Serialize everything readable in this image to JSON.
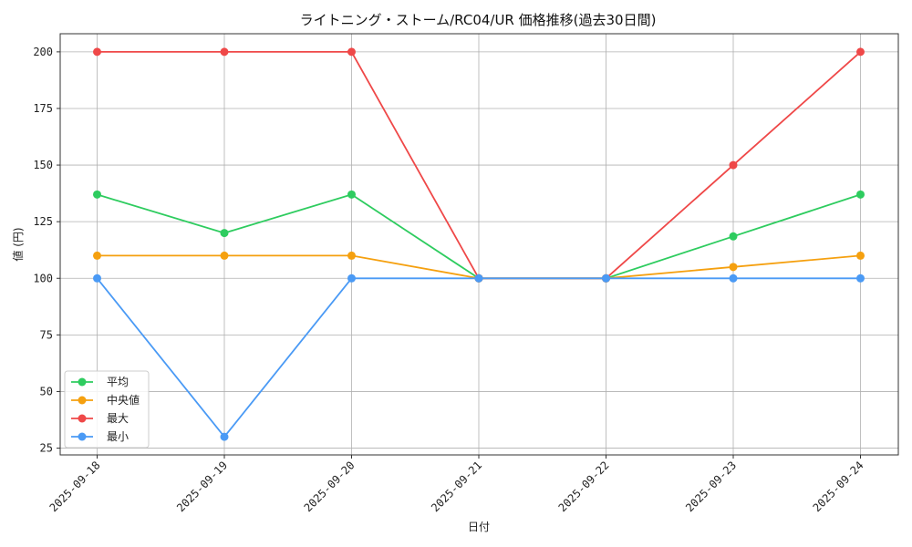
{
  "chart_data": {
    "type": "line",
    "title": "ライトニング・ストーム/RC04/UR 価格推移(過去30日間)",
    "xlabel": "日付",
    "ylabel": "値 (円)",
    "categories": [
      "2025-09-18",
      "2025-09-19",
      "2025-09-20",
      "2025-09-21",
      "2025-09-22",
      "2025-09-23",
      "2025-09-24"
    ],
    "ylim": [
      22,
      208
    ],
    "yticks": [
      25,
      50,
      75,
      100,
      125,
      150,
      175,
      200
    ],
    "grid": true,
    "legend_position": "lower-left",
    "series": [
      {
        "name": "平均",
        "color": "#2ecc5f",
        "values": [
          137,
          120,
          137,
          100,
          100,
          118.5,
          137
        ]
      },
      {
        "name": "中央値",
        "color": "#f5a00f",
        "values": [
          110,
          110,
          110,
          100,
          100,
          105,
          110
        ]
      },
      {
        "name": "最大",
        "color": "#ef4848",
        "values": [
          200,
          200,
          200,
          100,
          100,
          150,
          200
        ]
      },
      {
        "name": "最小",
        "color": "#4a9af5",
        "values": [
          100,
          30,
          100,
          100,
          100,
          100,
          100
        ]
      }
    ]
  }
}
